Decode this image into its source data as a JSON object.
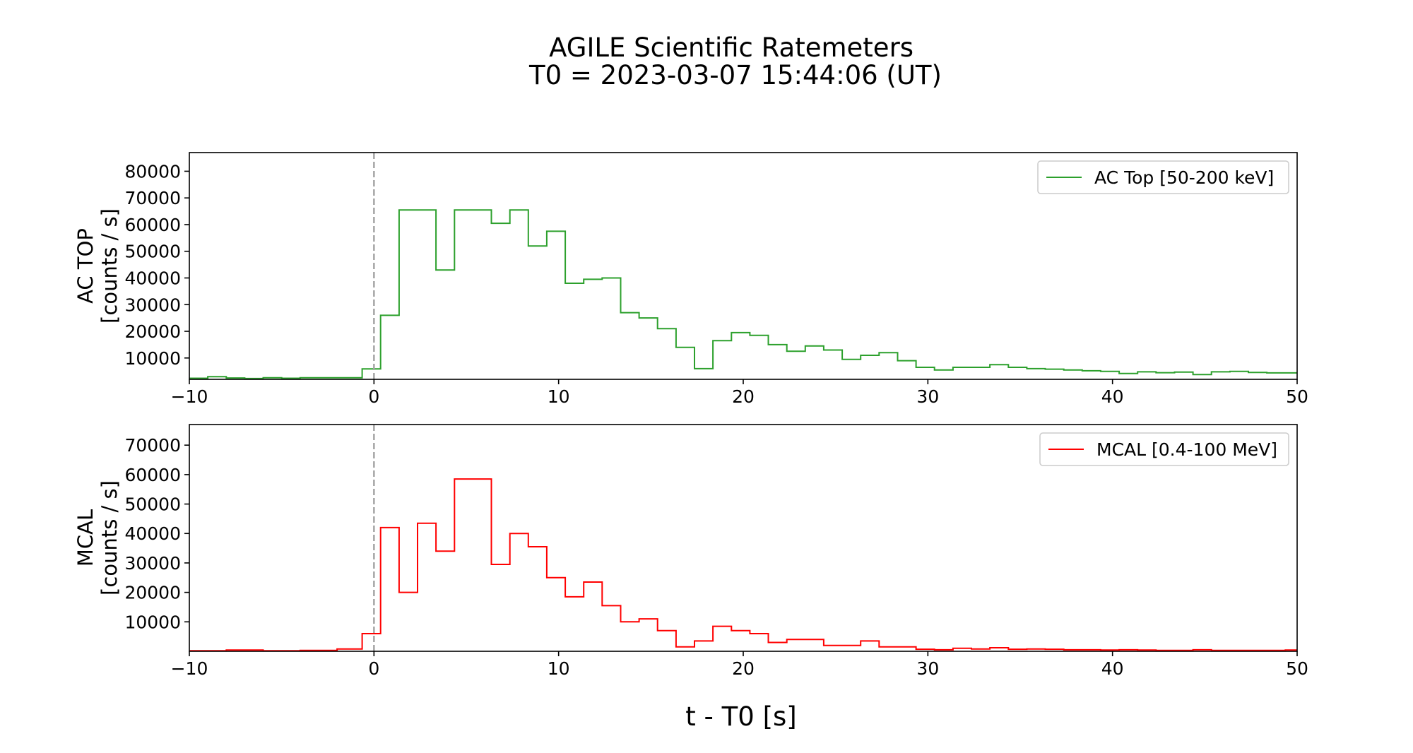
{
  "title_lines": [
    "AGILE Scientific Ratemeters",
    "T0 = 2023-03-07 15:44:06 (UT)"
  ],
  "xlabel": "t - T0 [s]",
  "chart_data": [
    {
      "type": "line",
      "drawstyle": "steps",
      "ylabel_lines": [
        "AC TOP",
        "[counts / s]"
      ],
      "legend": "AC Top [50-200 keV]",
      "legend_position": "upper right",
      "color": "#2ca02c",
      "xlim": [
        -10,
        50
      ],
      "ylim": [
        2000,
        87000
      ],
      "xticks": [
        -10,
        0,
        10,
        20,
        30,
        40,
        50
      ],
      "xtick_labels": [
        "−10",
        "0",
        "10",
        "20",
        "30",
        "40",
        "50"
      ],
      "yticks": [
        10000,
        20000,
        30000,
        40000,
        50000,
        60000,
        70000,
        80000
      ],
      "ytick_labels": [
        "10000",
        "20000",
        "30000",
        "40000",
        "50000",
        "60000",
        "70000",
        "80000"
      ],
      "vline_x": 0,
      "bin_edges": [
        -10,
        -9,
        -8,
        -7,
        -6,
        -5,
        -4,
        -3,
        -2,
        -1,
        -0.64,
        0.36,
        1.36,
        2.36,
        3.36,
        4.36,
        5.36,
        6.36,
        7.36,
        8.36,
        9.36,
        10.36,
        11.36,
        12.36,
        13.36,
        14.36,
        15.36,
        16.36,
        17.36,
        18.36,
        19.36,
        20.36,
        21.36,
        22.36,
        23.36,
        24.36,
        25.36,
        26.36,
        27.36,
        28.36,
        29.36,
        30.36,
        31.36,
        32.36,
        33.36,
        34.36,
        35.36,
        36.36,
        37.36,
        38.36,
        39.36,
        40.36,
        41.36,
        42.36,
        43.36,
        44.36,
        45.36,
        46.36,
        47.36,
        48.36,
        49.36,
        50
      ],
      "values": [
        2400,
        3000,
        2500,
        2300,
        2600,
        2400,
        2600,
        2600,
        2600,
        2600,
        5900,
        26000,
        65500,
        65500,
        43000,
        65500,
        65500,
        60500,
        65500,
        52000,
        57500,
        38000,
        39500,
        40000,
        27000,
        25000,
        21000,
        14000,
        6000,
        16500,
        19500,
        18500,
        15000,
        12500,
        14500,
        13000,
        9500,
        11000,
        12000,
        9000,
        6500,
        5500,
        6500,
        6500,
        7500,
        6500,
        6000,
        5800,
        5500,
        5200,
        5000,
        4200,
        4800,
        4500,
        4700,
        3800,
        4800,
        5000,
        4600,
        4400,
        4400
      ]
    },
    {
      "type": "line",
      "drawstyle": "steps",
      "ylabel_lines": [
        "MCAL",
        "[counts / s]"
      ],
      "legend": "MCAL [0.4-100 MeV]",
      "legend_position": "upper right",
      "color": "#ff0000",
      "xlim": [
        -10,
        50
      ],
      "ylim": [
        0,
        77000
      ],
      "xticks": [
        -10,
        0,
        10,
        20,
        30,
        40,
        50
      ],
      "xtick_labels": [
        "−10",
        "0",
        "10",
        "20",
        "30",
        "40",
        "50"
      ],
      "yticks": [
        10000,
        20000,
        30000,
        40000,
        50000,
        60000,
        70000
      ],
      "ytick_labels": [
        "10000",
        "20000",
        "30000",
        "40000",
        "50000",
        "60000",
        "70000"
      ],
      "vline_x": 0,
      "bin_edges": [
        -10,
        -8,
        -6,
        -4,
        -2,
        -0.64,
        0.36,
        1.36,
        2.36,
        3.36,
        4.36,
        5.36,
        6.36,
        7.36,
        8.36,
        9.36,
        10.36,
        11.36,
        12.36,
        13.36,
        14.36,
        15.36,
        16.36,
        17.36,
        18.36,
        19.36,
        20.36,
        21.36,
        22.36,
        23.36,
        24.36,
        25.36,
        26.36,
        27.36,
        28.36,
        29.36,
        30.36,
        31.36,
        32.36,
        33.36,
        34.36,
        35.36,
        36.36,
        37.36,
        38.36,
        39.36,
        40.36,
        41.36,
        42.36,
        43.36,
        44.36,
        45.36,
        46.36,
        47.36,
        48.36,
        49.36,
        50
      ],
      "values": [
        200,
        400,
        200,
        300,
        800,
        6000,
        42000,
        20000,
        43500,
        34000,
        58500,
        58500,
        29500,
        40000,
        35500,
        25000,
        18500,
        23500,
        15500,
        10000,
        11000,
        7000,
        1500,
        3500,
        8500,
        7000,
        6000,
        3000,
        4000,
        4000,
        2000,
        2000,
        3500,
        1500,
        1500,
        700,
        500,
        1000,
        800,
        1200,
        700,
        800,
        700,
        500,
        500,
        400,
        500,
        400,
        300,
        300,
        500,
        300,
        300,
        300,
        300,
        400
      ]
    }
  ]
}
